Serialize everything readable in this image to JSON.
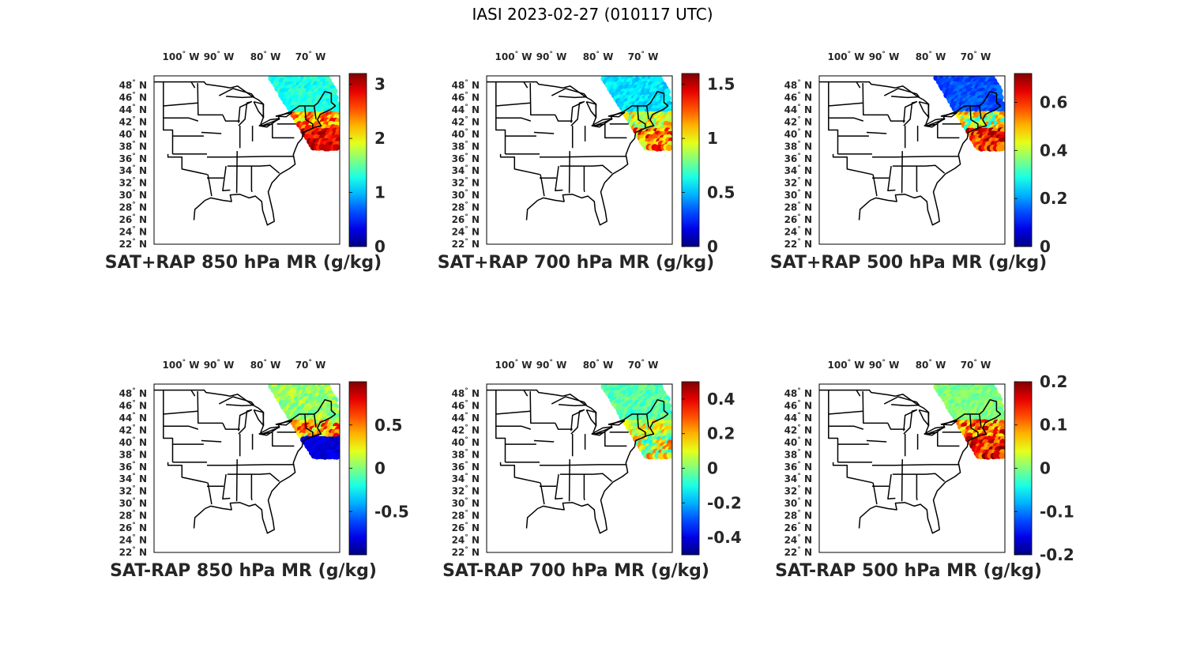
{
  "figure_title": "IASI 2023-02-27 (010117 UTC)",
  "lon_ticks": [
    {
      "deg": "100",
      "hemi": "W"
    },
    {
      "deg": "90",
      "hemi": "W"
    },
    {
      "deg": "80",
      "hemi": "W"
    },
    {
      "deg": "70",
      "hemi": "W"
    }
  ],
  "lat_ticks": [
    {
      "deg": "48",
      "hemi": "N"
    },
    {
      "deg": "46",
      "hemi": "N"
    },
    {
      "deg": "44",
      "hemi": "N"
    },
    {
      "deg": "42",
      "hemi": "N"
    },
    {
      "deg": "40",
      "hemi": "N"
    },
    {
      "deg": "38",
      "hemi": "N"
    },
    {
      "deg": "36",
      "hemi": "N"
    },
    {
      "deg": "34",
      "hemi": "N"
    },
    {
      "deg": "32",
      "hemi": "N"
    },
    {
      "deg": "30",
      "hemi": "N"
    },
    {
      "deg": "28",
      "hemi": "N"
    },
    {
      "deg": "26",
      "hemi": "N"
    },
    {
      "deg": "24",
      "hemi": "N"
    },
    {
      "deg": "22",
      "hemi": "N"
    }
  ],
  "colormap": "jet",
  "panels": [
    {
      "title": "SAT+RAP 850 hPa MR (g/kg)",
      "colorbar_ticks": [
        "0",
        "1",
        "2",
        "3"
      ],
      "colorbar_range": [
        0,
        3.2
      ]
    },
    {
      "title": "SAT+RAP 700 hPa MR (g/kg)",
      "colorbar_ticks": [
        "0",
        "0.5",
        "1",
        "1.5"
      ],
      "colorbar_range": [
        0,
        1.6
      ]
    },
    {
      "title": "SAT+RAP 500 hPa MR (g/kg)",
      "colorbar_ticks": [
        "0",
        "0.2",
        "0.4",
        "0.6"
      ],
      "colorbar_range": [
        0,
        0.72
      ]
    },
    {
      "title": "SAT-RAP 850 hPa MR (g/kg)",
      "colorbar_ticks": [
        "-0.5",
        "0",
        "0.5"
      ],
      "colorbar_range": [
        -1,
        1
      ]
    },
    {
      "title": "SAT-RAP 700 hPa MR (g/kg)",
      "colorbar_ticks": [
        "-0.4",
        "-0.2",
        "0",
        "0.2",
        "0.4"
      ],
      "colorbar_range": [
        -0.5,
        0.5
      ]
    },
    {
      "title": "SAT-RAP 500 hPa MR (g/kg)",
      "colorbar_ticks": [
        "-0.2",
        "-0.1",
        "0",
        "0.1",
        "0.2"
      ],
      "colorbar_range": [
        -0.2,
        0.2
      ]
    }
  ]
}
